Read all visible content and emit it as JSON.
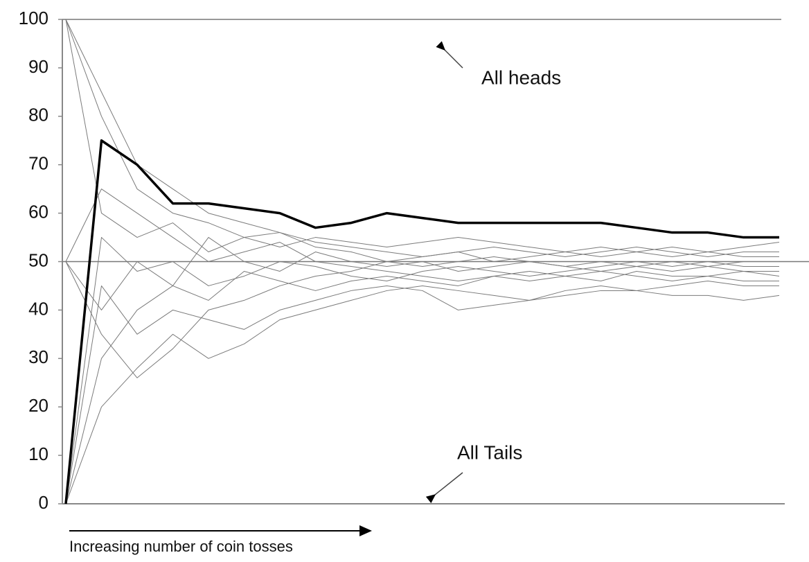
{
  "chart_data": {
    "type": "line",
    "annotations": [
      "All heads",
      "All Tails"
    ],
    "xlabel": "Increasing number of coin tosses",
    "ylim": [
      0,
      100
    ],
    "yticks": [
      0,
      10,
      20,
      30,
      40,
      50,
      60,
      70,
      80,
      90,
      100
    ],
    "hlines": [
      100,
      50
    ],
    "series": [
      {
        "color": "#7a7a7a",
        "line_width": 1,
        "values": [
          100,
          85,
          70,
          65,
          60,
          58,
          56,
          54,
          53,
          52,
          51,
          52,
          53,
          52,
          51,
          52,
          53,
          52,
          51,
          52,
          52
        ]
      },
      {
        "color": "#7a7a7a",
        "line_width": 1,
        "values": [
          0,
          20,
          28,
          35,
          30,
          33,
          38,
          40,
          42,
          44,
          45,
          44,
          43,
          42,
          43,
          44,
          44,
          43,
          43,
          42,
          43
        ]
      },
      {
        "color": "#7a7a7a",
        "line_width": 1,
        "values": [
          50,
          40,
          50,
          45,
          55,
          50,
          48,
          52,
          50,
          49,
          50,
          48,
          49,
          50,
          49,
          50,
          49,
          48,
          49,
          50,
          50
        ]
      },
      {
        "color": "#7a7a7a",
        "line_width": 1,
        "values": [
          100,
          60,
          55,
          58,
          52,
          55,
          56,
          53,
          52,
          50,
          51,
          52,
          50,
          51,
          52,
          53,
          52,
          51,
          52,
          53,
          54
        ]
      },
      {
        "color": "#7a7a7a",
        "line_width": 1,
        "values": [
          0,
          30,
          40,
          45,
          42,
          48,
          46,
          44,
          46,
          47,
          46,
          45,
          47,
          46,
          47,
          46,
          48,
          47,
          47,
          46,
          46
        ]
      },
      {
        "color": "#7a7a7a",
        "line_width": 1,
        "values": [
          50,
          65,
          60,
          55,
          50,
          52,
          54,
          50,
          49,
          48,
          47,
          46,
          47,
          48,
          47,
          48,
          47,
          46,
          47,
          48,
          47
        ]
      },
      {
        "color": "#7a7a7a",
        "line_width": 1,
        "values": [
          0,
          45,
          35,
          40,
          38,
          36,
          40,
          42,
          44,
          45,
          44,
          40,
          41,
          42,
          44,
          45,
          44,
          45,
          46,
          45,
          45
        ]
      },
      {
        "color": "#7a7a7a",
        "line_width": 1,
        "values": [
          100,
          80,
          65,
          60,
          58,
          55,
          53,
          55,
          54,
          53,
          54,
          55,
          54,
          53,
          52,
          51,
          52,
          53,
          52,
          51,
          51
        ]
      },
      {
        "color": "#7a7a7a",
        "line_width": 1,
        "values": [
          50,
          35,
          26,
          32,
          40,
          42,
          45,
          47,
          48,
          50,
          49,
          50,
          51,
          50,
          49,
          48,
          49,
          50,
          49,
          48,
          48
        ]
      },
      {
        "color": "#7a7a7a",
        "line_width": 1,
        "values": [
          0,
          55,
          48,
          50,
          45,
          47,
          50,
          49,
          47,
          46,
          48,
          49,
          48,
          47,
          48,
          49,
          50,
          49,
          50,
          49,
          49
        ]
      },
      {
        "color": "#000000",
        "line_width": 3.5,
        "values": [
          0,
          75,
          70,
          62,
          62,
          61,
          60,
          57,
          58,
          60,
          59,
          58,
          58,
          58,
          58,
          58,
          57,
          56,
          56,
          55,
          55
        ]
      }
    ]
  }
}
